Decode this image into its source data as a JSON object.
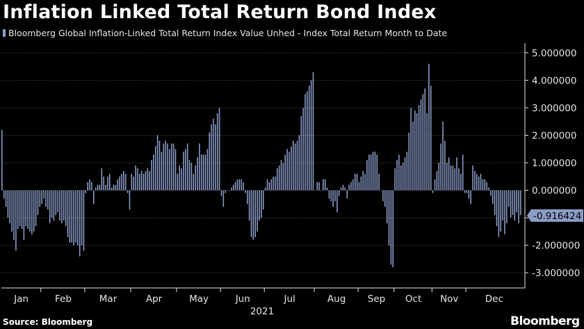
{
  "chart_data": {
    "type": "bar",
    "title": "Inflation Linked Total Return Bond Index",
    "series": [
      {
        "name": "Bloomberg Global Inflation-Linked Total Return Index Value Unhed - Index Total Return Month to Date",
        "color": "#8b9cc7",
        "months": [
          {
            "label": "Jan",
            "values": [
              2.2,
              -0.3,
              -0.6,
              -1.0,
              -1.2,
              -1.5,
              -1.8,
              -2.2,
              -1.4,
              -1.3,
              -1.4,
              -1.8,
              -1.3,
              -1.4,
              -1.5,
              -1.6,
              -1.5,
              -1.3,
              -0.9,
              -0.6
            ]
          },
          {
            "label": "Feb",
            "values": [
              -0.5,
              -0.3,
              -0.6,
              -0.7,
              -1.2,
              -1.0,
              -1.1,
              -0.9,
              -0.8,
              -1.1,
              -1.2,
              -1.1,
              -1.3,
              -1.7,
              -1.9,
              -1.9,
              -2.0,
              -1.9,
              -2.0,
              -2.4,
              -2.0,
              -2.2
            ]
          },
          {
            "label": "Mar",
            "values": [
              -0.1,
              0.3,
              0.4,
              0.3,
              -0.5,
              0.1,
              0.2,
              0.2,
              0.8,
              0.5,
              0.2,
              0.5,
              0.6,
              0.1,
              0.2,
              0.2,
              0.4,
              0.5,
              0.6,
              0.7,
              0.6,
              -0.1,
              -0.7
            ]
          },
          {
            "label": "Apr",
            "values": [
              0.6,
              0.5,
              0.9,
              0.8,
              0.6,
              0.7,
              0.6,
              0.7,
              0.8,
              0.7,
              1.1,
              1.3,
              1.6,
              2.0,
              1.8,
              1.4,
              1.7,
              1.8,
              1.7,
              1.5,
              1.7,
              1.7,
              1.5
            ]
          },
          {
            "label": "May",
            "values": [
              0.6,
              0.9,
              0.8,
              1.4,
              1.5,
              1.7,
              1.1,
              1.0,
              0.6,
              0.9,
              1.2,
              1.7,
              1.3,
              1.3,
              1.3,
              1.5,
              2.1,
              2.4,
              2.6,
              2.4,
              2.8,
              3.0
            ]
          },
          {
            "label": "Jun",
            "values": [
              -0.2,
              -0.6,
              -0.1,
              0.0,
              0.0,
              0.1,
              0.2,
              0.3,
              0.4,
              0.4,
              0.4,
              0.3,
              -0.1,
              -0.5,
              -1.1,
              -1.7,
              -1.8,
              -1.7,
              -1.5,
              -1.1,
              -1.0,
              -0.7
            ]
          },
          {
            "label": "Jul",
            "values": [
              0.1,
              0.4,
              0.3,
              0.4,
              0.5,
              0.5,
              0.8,
              0.9,
              1.1,
              1.0,
              1.3,
              1.5,
              1.4,
              1.6,
              1.8,
              1.7,
              1.8,
              2.0,
              2.7,
              3.0,
              3.5,
              3.6,
              3.8,
              4.0,
              4.3
            ]
          },
          {
            "label": "Aug",
            "values": [
              0.0,
              0.3,
              0.3,
              0.0,
              0.4,
              0.4,
              0.1,
              -0.3,
              -0.4,
              -0.6,
              -0.4,
              -0.8,
              -0.2,
              0.1,
              0.2,
              0.1,
              -0.3,
              0.2,
              0.3,
              0.4,
              0.6,
              0.6
            ]
          },
          {
            "label": "Sep",
            "values": [
              0.3,
              0.5,
              0.7,
              0.6,
              1.1,
              1.3,
              1.3,
              1.4,
              1.4,
              1.3,
              0.6,
              0.0,
              -0.4,
              -0.6,
              -1.2,
              -2.0,
              -2.7,
              -2.8
            ]
          },
          {
            "label": "Oct",
            "values": [
              0.8,
              1.1,
              1.3,
              0.9,
              1.0,
              1.2,
              1.4,
              2.1,
              3.0,
              2.5,
              2.9,
              2.8,
              3.1,
              3.3,
              3.5,
              3.7,
              2.8,
              4.6,
              3.8
            ]
          },
          {
            "label": "Nov",
            "values": [
              -0.1,
              0.4,
              0.7,
              1.0,
              1.7,
              2.5,
              1.8,
              1.0,
              1.2,
              0.9,
              0.9,
              0.8,
              1.2,
              0.8,
              0.6,
              1.3,
              -0.1
            ]
          },
          {
            "label": "Dec",
            "values": [
              -0.1,
              -0.3,
              -0.5,
              0.9,
              0.7,
              0.6,
              0.5,
              0.6,
              0.4,
              0.4,
              0.3,
              0.1,
              -0.2,
              -0.5,
              -0.9,
              -1.3,
              -1.7,
              -1.5,
              -1.1,
              -1.6,
              -1.2,
              -0.6,
              -1.0,
              -0.9,
              -1.1,
              -0.8,
              -1.2,
              -0.9
            ]
          }
        ]
      }
    ],
    "y_ticks": [
      "5.000000",
      "4.000000",
      "3.000000",
      "2.000000",
      "1.000000",
      "0.000000",
      "-1.000000",
      "-2.000000",
      "-3.000000"
    ],
    "y_tick_values": [
      5,
      4,
      3,
      2,
      1,
      0,
      -1,
      -2,
      -3
    ],
    "ylim": [
      -3.55,
      5.35
    ],
    "year_label": "2021",
    "last_value": -0.916424,
    "last_value_label": "-0.916424",
    "grid": true,
    "legend_placement": "top-left",
    "colors": {
      "background": "#000000",
      "bar": "#8b9cc7",
      "grid": "#5a5a5a",
      "axis_text": "#e6e6e6",
      "callout": "#8b9cc7"
    }
  },
  "footer": {
    "source": "Source: Bloomberg",
    "brand": "Bloomberg"
  }
}
